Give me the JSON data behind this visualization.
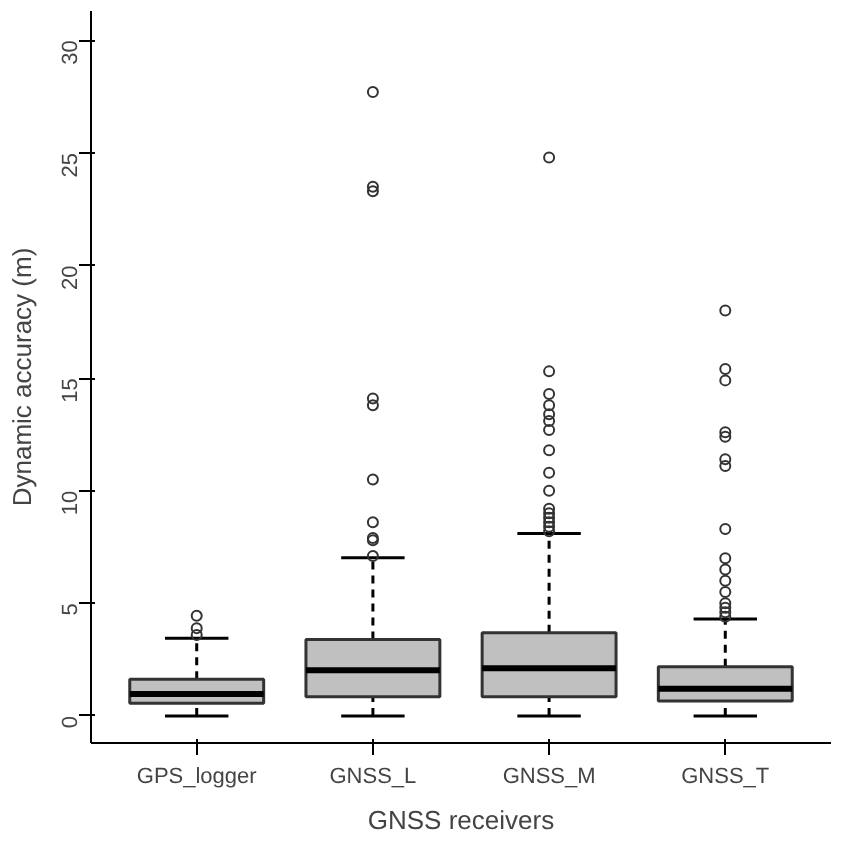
{
  "chart_data": {
    "type": "box",
    "xlabel": "GNSS receivers",
    "ylabel": "Dynamic accuracy (m)",
    "categories": [
      "GPS_logger",
      "GNSS_L",
      "GNSS_M",
      "GNSS_T"
    ],
    "color": "#c0c0c0",
    "ylim": [
      -1.2,
      31.3
    ],
    "yticks": [
      0,
      5,
      10,
      15,
      20,
      25,
      30
    ],
    "grid": false,
    "line_style": "dashed",
    "marker": "circle",
    "boxes": [
      {
        "low": 0,
        "q1": 0.57,
        "median": 0.97,
        "q3": 1.63,
        "high": 3.45,
        "outliers": [
          3.6,
          3.9,
          4.45
        ]
      },
      {
        "low": 0,
        "q1": 0.85,
        "median": 2.03,
        "q3": 3.39,
        "high": 7.02,
        "outliers": [
          7.1,
          7.8,
          7.9,
          8.6,
          10.5,
          13.8,
          14.1,
          23.3,
          23.5,
          27.7
        ]
      },
      {
        "low": 0,
        "q1": 0.85,
        "median": 2.12,
        "q3": 3.69,
        "high": 8.1,
        "outliers": [
          8.2,
          8.4,
          8.6,
          8.8,
          9.0,
          9.2,
          10.0,
          10.8,
          11.8,
          12.7,
          13.1,
          13.4,
          13.8,
          14.3,
          15.3,
          24.8
        ]
      },
      {
        "low": 0,
        "q1": 0.67,
        "median": 1.21,
        "q3": 2.18,
        "high": 4.3,
        "outliers": [
          4.4,
          4.6,
          4.8,
          5.0,
          5.5,
          6.0,
          6.5,
          7.0,
          8.3,
          11.1,
          11.4,
          12.4,
          12.6,
          14.9,
          15.4,
          18.0
        ]
      }
    ]
  }
}
